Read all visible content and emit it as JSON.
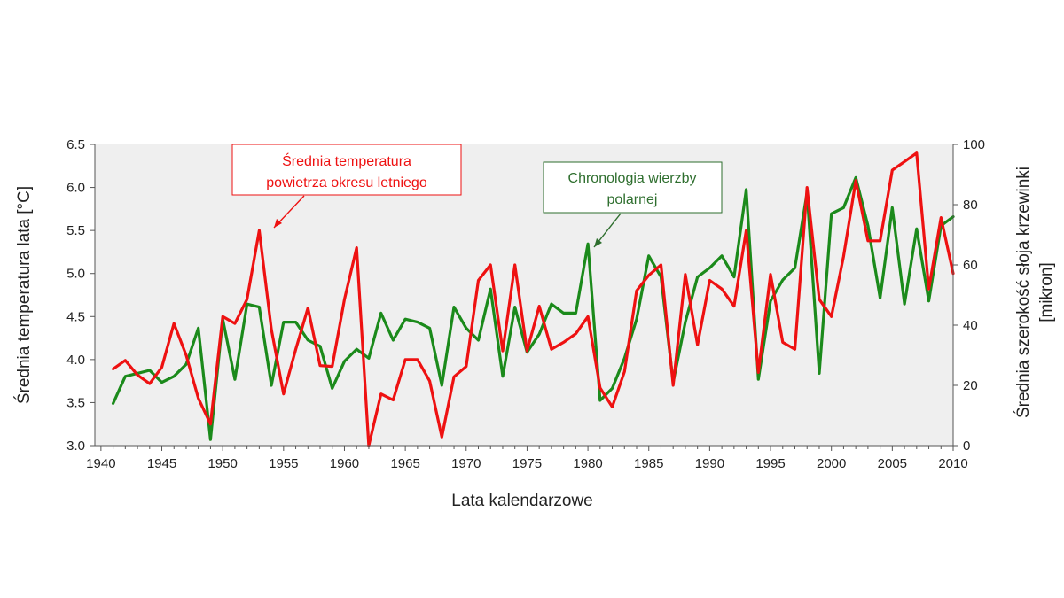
{
  "chart_data": {
    "type": "line",
    "xlabel": "Lata kalendarzowe",
    "ylabel_left": "Średnia temperatura lata [°C]",
    "ylabel_right_line1": "Średnia szerokość słoja krzewinki",
    "ylabel_right_line2": "[mikron]",
    "xlim": [
      1939.5,
      2010
    ],
    "ylim_left": [
      3.0,
      6.5
    ],
    "ylim_right": [
      0,
      100
    ],
    "x_ticks": [
      "1940",
      "1945",
      "1950",
      "1955",
      "1960",
      "1965",
      "1970",
      "1975",
      "1980",
      "1985",
      "1990",
      "1995",
      "2000",
      "2005",
      "2010"
    ],
    "y_left_ticks": [
      "3.0",
      "3.5",
      "4.0",
      "4.5",
      "5.0",
      "5.5",
      "6.0",
      "6.5"
    ],
    "y_right_ticks": [
      "0",
      "20",
      "40",
      "60",
      "80",
      "100"
    ],
    "grid": false,
    "plot_background": "#efefef",
    "years": [
      1941,
      1942,
      1943,
      1944,
      1945,
      1946,
      1947,
      1948,
      1949,
      1950,
      1951,
      1952,
      1953,
      1954,
      1955,
      1956,
      1957,
      1958,
      1959,
      1960,
      1961,
      1962,
      1963,
      1964,
      1965,
      1966,
      1967,
      1968,
      1969,
      1970,
      1971,
      1972,
      1973,
      1974,
      1975,
      1976,
      1977,
      1978,
      1979,
      1980,
      1981,
      1982,
      1983,
      1984,
      1985,
      1986,
      1987,
      1988,
      1989,
      1990,
      1991,
      1992,
      1993,
      1994,
      1995,
      1996,
      1997,
      1998,
      1999,
      2000,
      2001,
      2002,
      2003,
      2004,
      2005,
      2006,
      2007,
      2008,
      2009,
      2010
    ],
    "series": [
      {
        "name": "Średnia temperatura powietrza okresu letniego",
        "axis": "left",
        "color": "#ee1111",
        "values": [
          3.89,
          3.99,
          3.82,
          3.72,
          3.91,
          4.42,
          4.05,
          3.55,
          3.25,
          4.5,
          4.42,
          4.7,
          5.5,
          4.35,
          3.6,
          4.12,
          4.6,
          3.93,
          3.92,
          4.7,
          5.3,
          3.0,
          3.6,
          3.53,
          4.0,
          4.0,
          3.75,
          3.1,
          3.8,
          3.92,
          4.92,
          5.1,
          4.1,
          5.1,
          4.1,
          4.62,
          4.12,
          4.2,
          4.3,
          4.5,
          3.67,
          3.45,
          3.86,
          4.8,
          4.98,
          5.1,
          3.7,
          4.99,
          4.17,
          4.92,
          4.82,
          4.62,
          5.5,
          3.85,
          4.99,
          4.2,
          4.12,
          6.0,
          4.7,
          4.5,
          5.2,
          6.08,
          5.38,
          5.38,
          6.2,
          6.3,
          6.4,
          4.82,
          5.65,
          5.0
        ]
      },
      {
        "name": "Chronologia wierzby polarnej",
        "axis": "right",
        "color": "#1b8a1b",
        "values": [
          14,
          23,
          24,
          25,
          21,
          23,
          27,
          39,
          2,
          42,
          22,
          47,
          46,
          20,
          41,
          41,
          35,
          33,
          19,
          28,
          32,
          29,
          44,
          35,
          42,
          41,
          39,
          20,
          46,
          39,
          35,
          52,
          23,
          46,
          31,
          37,
          47,
          44,
          44,
          67,
          15,
          19,
          29,
          42,
          63,
          56,
          21,
          41,
          56,
          59,
          63,
          56,
          85,
          22,
          48,
          55,
          59,
          84,
          24,
          77,
          79,
          89,
          73,
          49,
          79,
          47,
          72,
          48,
          73,
          76
        ]
      }
    ],
    "annotations": [
      {
        "text_lines": [
          "Średnia temperatura",
          "powietrza okresu letniego"
        ],
        "color": "#ee1111",
        "series_index": 0
      },
      {
        "text_lines": [
          "Chronologia  wierzby",
          "polarnej"
        ],
        "color": "#2e6e2e",
        "series_index": 1
      }
    ]
  }
}
